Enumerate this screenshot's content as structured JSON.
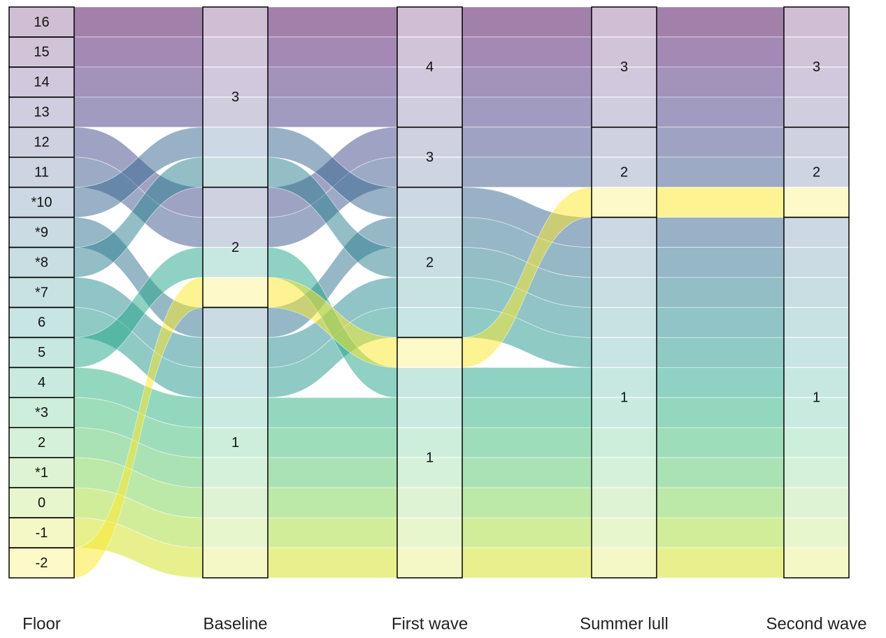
{
  "chart_data": {
    "type": "alluvial",
    "floor_axis": "Floor",
    "floors": [
      {
        "label": "16",
        "color": "#440154"
      },
      {
        "label": "15",
        "color": "#481467"
      },
      {
        "label": "14",
        "color": "#482576"
      },
      {
        "label": "13",
        "color": "#453781"
      },
      {
        "label": "12",
        "color": "#3f4788"
      },
      {
        "label": "11",
        "color": "#39558c"
      },
      {
        "label": "*10",
        "color": "#32648e"
      },
      {
        "label": "*9",
        "color": "#2d718e"
      },
      {
        "label": "*8",
        "color": "#287d8e"
      },
      {
        "label": "*7",
        "color": "#238a8d"
      },
      {
        "label": "6",
        "color": "#1f968b"
      },
      {
        "label": "5",
        "color": "#20a386"
      },
      {
        "label": "4",
        "color": "#29af7f"
      },
      {
        "label": "*3",
        "color": "#3dbc74"
      },
      {
        "label": "2",
        "color": "#56c667"
      },
      {
        "label": "*1",
        "color": "#7ad151"
      },
      {
        "label": "0",
        "color": "#a5db36"
      },
      {
        "label": "-1",
        "color": "#d2e21b"
      },
      {
        "label": "-2",
        "color": "#fde725"
      }
    ],
    "axes": [
      {
        "name": "Baseline",
        "strata": [
          {
            "label": "3",
            "floors": [
              "16",
              "15",
              "14",
              "13",
              "*10",
              "*8"
            ]
          },
          {
            "label": "2",
            "floors": [
              "12",
              "11",
              "5",
              "-2"
            ]
          },
          {
            "label": "1",
            "floors": [
              "*9",
              "*7",
              "6",
              "4",
              "*3",
              "2",
              "*1",
              "0",
              "-1"
            ]
          }
        ]
      },
      {
        "name": "First wave",
        "strata": [
          {
            "label": "4",
            "floors": [
              "16",
              "15",
              "14",
              "13"
            ]
          },
          {
            "label": "3",
            "floors": [
              "12",
              "11"
            ]
          },
          {
            "label": "2",
            "floors": [
              "*10",
              "*9",
              "*8",
              "*7",
              "6"
            ]
          },
          {
            "label": "1",
            "floors": [
              "-2",
              "5",
              "4",
              "*3",
              "2",
              "*1",
              "0",
              "-1"
            ]
          }
        ]
      },
      {
        "name": "Summer lull",
        "strata": [
          {
            "label": "3",
            "floors": [
              "16",
              "15",
              "14",
              "13"
            ]
          },
          {
            "label": "2",
            "floors": [
              "12",
              "11",
              "-2"
            ]
          },
          {
            "label": "1",
            "floors": [
              "*10",
              "*9",
              "*8",
              "*7",
              "6",
              "5",
              "4",
              "*3",
              "2",
              "*1",
              "0",
              "-1"
            ]
          }
        ]
      },
      {
        "name": "Second wave",
        "strata": [
          {
            "label": "3",
            "floors": [
              "16",
              "15",
              "14",
              "13"
            ]
          },
          {
            "label": "2",
            "floors": [
              "12",
              "11",
              "-2"
            ]
          },
          {
            "label": "1",
            "floors": [
              "*10",
              "*9",
              "*8",
              "*7",
              "6",
              "5",
              "4",
              "*3",
              "2",
              "*1",
              "0",
              "-1"
            ]
          }
        ]
      }
    ]
  }
}
